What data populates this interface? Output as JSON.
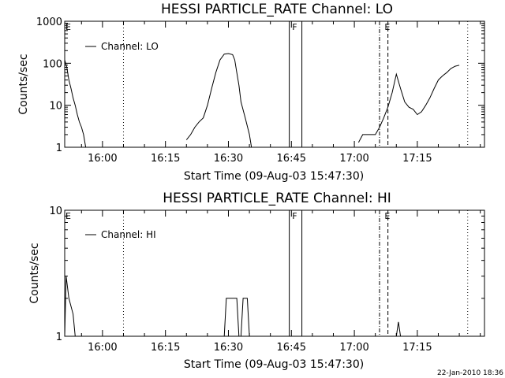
{
  "chart_data": [
    {
      "type": "line",
      "title": "HESSI PARTICLE_RATE Channel: LO",
      "xlabel": "Start Time (09-Aug-03 15:47:30)",
      "ylabel": "Counts/sec",
      "yscale": "log",
      "xlim": [
        "15:51",
        "17:31"
      ],
      "ylim": [
        1,
        1000
      ],
      "x_tick_labels": [
        "16:00",
        "16:15",
        "16:30",
        "16:45",
        "17:00",
        "17:15"
      ],
      "y_tick_labels": [
        "1",
        "10",
        "100",
        "1000"
      ],
      "y_tick_values": [
        1,
        10,
        100,
        1000
      ],
      "legend": {
        "entries": [
          "Channel: LO"
        ],
        "placement": "top-left"
      },
      "series": [
        {
          "name": "Channel: LO",
          "x": [
            "15:51:00",
            "15:51:30",
            "15:52:00",
            "15:52:30",
            "15:53:00",
            "15:53:30",
            "15:54:00",
            "15:54:30",
            "15:55:00",
            "15:55:30",
            "15:56:00",
            "16:20:00",
            "16:21:00",
            "16:22:00",
            "16:23:00",
            "16:24:00",
            "16:25:00",
            "16:26:00",
            "16:27:00",
            "16:28:00",
            "16:29:00",
            "16:30:00",
            "16:31:00",
            "16:31:30",
            "16:32:00",
            "16:32:30",
            "16:33:00",
            "16:34:00",
            "16:35:00",
            "16:35:30",
            "17:01:00",
            "17:02:00",
            "17:03:00",
            "17:04:00",
            "17:05:00",
            "17:06:00",
            "17:07:00",
            "17:08:00",
            "17:09:00",
            "17:10:00",
            "17:11:00",
            "17:12:00",
            "17:13:00",
            "17:14:00",
            "17:15:00",
            "17:16:00",
            "17:17:00",
            "17:18:00",
            "17:19:00",
            "17:20:00",
            "17:21:00",
            "17:22:00",
            "17:23:00",
            "17:24:00",
            "17:25:00"
          ],
          "y": [
            120,
            80,
            40,
            25,
            15,
            10,
            6,
            4,
            3,
            2,
            1,
            1.5,
            2,
            3,
            4,
            5,
            10,
            25,
            60,
            120,
            165,
            170,
            160,
            120,
            60,
            30,
            12,
            5,
            2,
            1,
            1.3,
            2,
            2,
            2,
            2,
            3,
            5,
            9,
            20,
            55,
            25,
            12,
            9,
            8,
            6,
            7,
            10,
            15,
            25,
            40,
            50,
            60,
            75,
            85,
            90
          ]
        }
      ],
      "annotations": [
        {
          "text": "F",
          "x": "16:45"
        },
        {
          "text": "E",
          "x": "15:51"
        },
        {
          "text": "E",
          "x": "17:07"
        }
      ],
      "vertical_lines": [
        {
          "x": "16:05",
          "style": "dotted"
        },
        {
          "x": "16:44:30",
          "style": "solid"
        },
        {
          "x": "16:47:30",
          "style": "solid"
        },
        {
          "x": "17:06",
          "style": "dashdot"
        },
        {
          "x": "17:08",
          "style": "dashed"
        },
        {
          "x": "17:27",
          "style": "dotted"
        }
      ],
      "grid": false
    },
    {
      "type": "line",
      "title": "HESSI PARTICLE_RATE Channel: HI",
      "xlabel": "Start Time (09-Aug-03 15:47:30)",
      "ylabel": "Counts/sec",
      "yscale": "log",
      "xlim": [
        "15:51",
        "17:31"
      ],
      "ylim": [
        1,
        10
      ],
      "x_tick_labels": [
        "16:00",
        "16:15",
        "16:30",
        "16:45",
        "17:00",
        "17:15"
      ],
      "y_tick_labels": [
        "1",
        "10"
      ],
      "y_tick_values": [
        1,
        10
      ],
      "legend": {
        "entries": [
          "Channel: HI"
        ],
        "placement": "top-left"
      },
      "series": [
        {
          "name": "Channel: HI",
          "x": [
            "15:51:00",
            "15:51:20",
            "15:52:00",
            "15:53:00",
            "15:53:30",
            "16:29:00",
            "16:29:30",
            "16:30:00",
            "16:31:00",
            "16:32:00",
            "16:32:30",
            "16:33:00",
            "16:33:30",
            "16:34:00",
            "16:34:30",
            "16:35:00",
            "16:35:30",
            "17:10:00",
            "17:10:30",
            "17:11:00"
          ],
          "y": [
            1,
            3,
            2,
            1.5,
            1,
            1,
            2,
            2,
            2,
            2,
            1,
            1,
            2,
            2,
            2,
            1,
            1,
            1,
            1.3,
            1
          ]
        }
      ],
      "annotations": [
        {
          "text": "F",
          "x": "16:45"
        },
        {
          "text": "E",
          "x": "15:51"
        },
        {
          "text": "E",
          "x": "17:07"
        }
      ],
      "vertical_lines": [
        {
          "x": "16:05",
          "style": "dotted"
        },
        {
          "x": "16:44:30",
          "style": "solid"
        },
        {
          "x": "16:47:30",
          "style": "solid"
        },
        {
          "x": "17:06",
          "style": "dashdot"
        },
        {
          "x": "17:08",
          "style": "dashed"
        },
        {
          "x": "17:27",
          "style": "dotted"
        }
      ],
      "grid": false
    }
  ],
  "footer": {
    "timestamp": "22-Jan-2010 18:36"
  }
}
